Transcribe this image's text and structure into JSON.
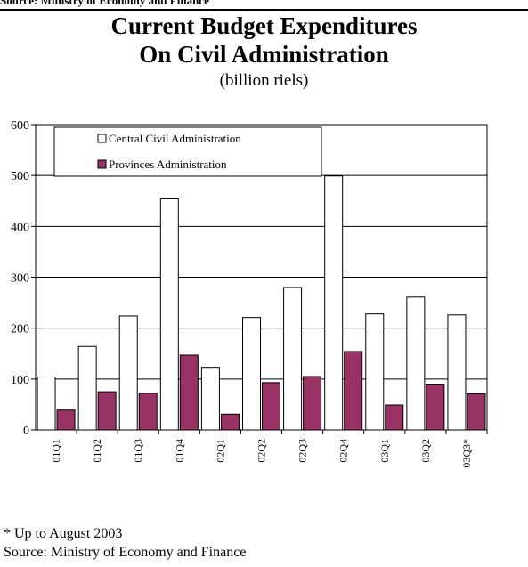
{
  "header": {
    "top_source": "Source: Ministry of Economy and Finance",
    "title_line1": "Current Budget Expenditures",
    "title_line2": "On Civil Administration",
    "subtitle": "(billion riels)"
  },
  "footer": {
    "note": "* Up to August 2003",
    "source": "Source: Ministry of Economy and Finance"
  },
  "colors": {
    "central": "#ffffff",
    "provinces": "#993366",
    "axis": "#000000",
    "grid": "#000000"
  },
  "chart_data": {
    "type": "bar",
    "categories": [
      "01Q1",
      "01Q2",
      "01Q3",
      "01Q4",
      "02Q1",
      "02Q2",
      "02Q3",
      "02Q4",
      "03Q1",
      "03Q2",
      "03Q3*"
    ],
    "series": [
      {
        "name": "Central Civil Administration",
        "values": [
          104,
          164,
          224,
          454,
          123,
          221,
          280,
          499,
          228,
          261,
          226
        ]
      },
      {
        "name": "Provinces Administration",
        "values": [
          39,
          75,
          72,
          147,
          31,
          93,
          105,
          154,
          49,
          90,
          71
        ]
      }
    ],
    "yticks": [
      "0",
      "100",
      "200",
      "300",
      "400",
      "500",
      "600"
    ],
    "ylim": [
      0,
      600
    ],
    "grid": true,
    "legend_position": "top-left",
    "xlabel": "",
    "ylabel": ""
  }
}
